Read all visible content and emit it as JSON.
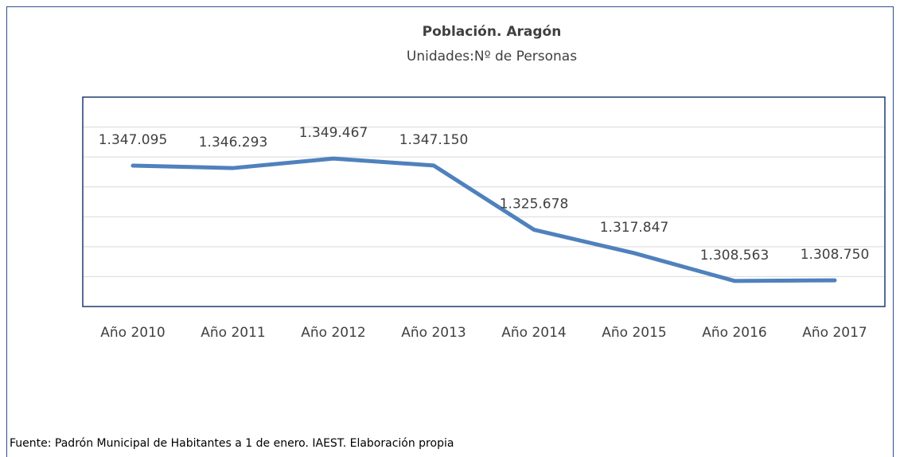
{
  "chart_data": {
    "type": "line",
    "title": "Población. Aragón",
    "subtitle": "Unidades:Nº de Personas",
    "source": "Fuente: Padrón Municipal de Habitantes a 1 de enero. IAEST. Elaboración propia",
    "categories": [
      "Año 2010",
      "Año 2011",
      "Año 2012",
      "Año 2013",
      "Año 2014",
      "Año 2015",
      "Año 2016",
      "Año 2017"
    ],
    "values": [
      1347095,
      1346293,
      1349467,
      1347150,
      1325678,
      1317847,
      1308563,
      1308750
    ],
    "value_labels": [
      "1.347.095",
      "1.346.293",
      "1.349.467",
      "1.347.150",
      "1.325.678",
      "1.317.847",
      "1.308.563",
      "1.308.750"
    ],
    "color": "#4f81bd",
    "ylim": [
      1300000,
      1370000
    ],
    "yticks": [
      1300000,
      1310000,
      1320000,
      1330000,
      1340000,
      1350000,
      1360000,
      1370000
    ],
    "grid": true
  }
}
